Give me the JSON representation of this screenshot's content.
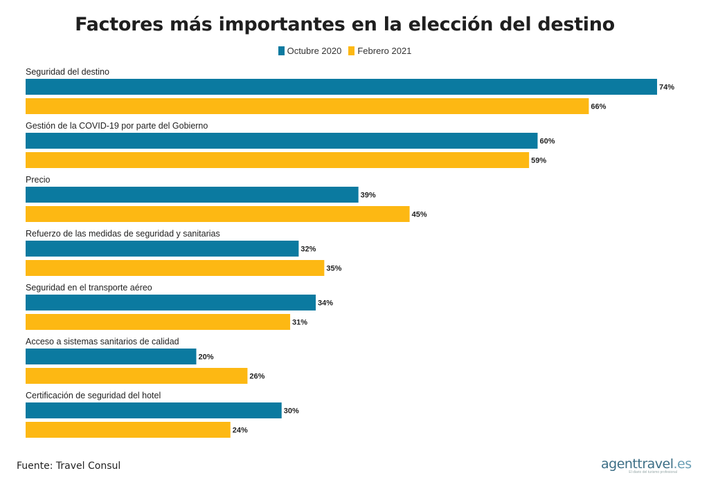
{
  "chart_data": {
    "type": "bar",
    "orientation": "horizontal",
    "title": "Factores más importantes en la elección del destino",
    "categories": [
      "Seguridad del destino",
      "Gestión de la COVID-19 por parte del Gobierno",
      "Precio",
      "Refuerzo de las medidas de seguridad y sanitarias",
      "Seguridad en el transporte aéreo",
      "Acceso a sistemas sanitarios de calidad",
      "Certificación de seguridad del hotel"
    ],
    "series": [
      {
        "name": "Octubre 2020",
        "color": "#0b7aa0",
        "values": [
          74,
          60,
          39,
          32,
          34,
          20,
          30
        ]
      },
      {
        "name": "Febrero 2021",
        "color": "#fdb813",
        "values": [
          66,
          59,
          45,
          35,
          31,
          26,
          24
        ]
      }
    ],
    "value_suffix": "%",
    "xlim": [
      0,
      74
    ],
    "grid": false,
    "legend_position": "top-center"
  },
  "footer": {
    "source": "Fuente: Travel Consul",
    "logo_main": "agenttravel",
    "logo_tld": ".es",
    "logo_sub": "El diario del turismo profesional"
  }
}
